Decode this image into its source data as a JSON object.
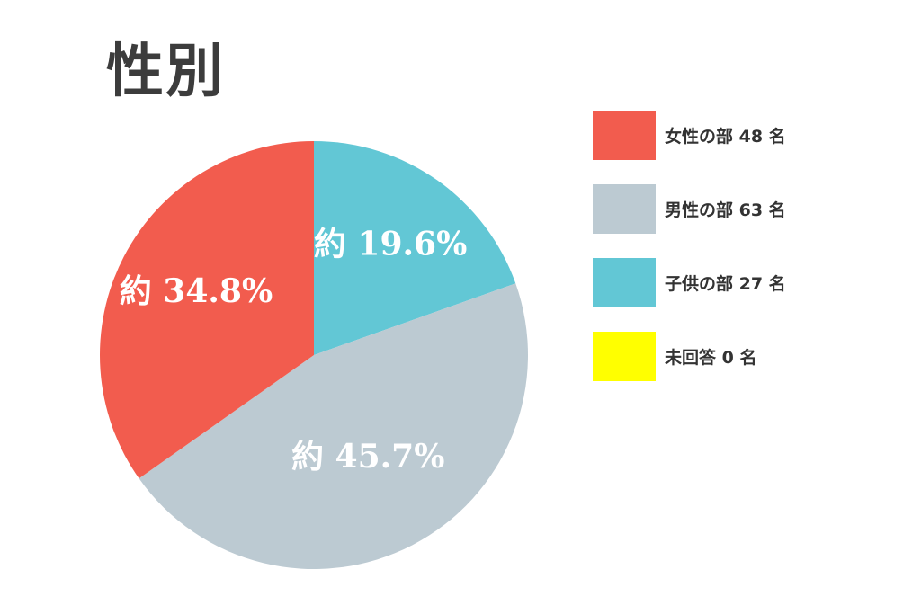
{
  "chart_data": {
    "type": "pie",
    "title": "性別",
    "slices": [
      {
        "label": "子供の部 27 名",
        "value": 27,
        "percent_label": "約 19.6%",
        "color": "#62c7d5"
      },
      {
        "label": "男性の部 63 名",
        "value": 63,
        "percent_label": "約 45.7%",
        "color": "#bccad2"
      },
      {
        "label": "女性の部 48 名",
        "value": 48,
        "percent_label": "約 34.8%",
        "color": "#f25c4e"
      },
      {
        "label": "未回答 0 名",
        "value": 0,
        "percent_label": "",
        "color": "#ffff00"
      }
    ],
    "legend": {
      "position": "right",
      "items": [
        {
          "label": "女性の部 48 名",
          "color": "#f25c4e"
        },
        {
          "label": "男性の部 63 名",
          "color": "#bccad2"
        },
        {
          "label": "子供の部 27 名",
          "color": "#62c7d5"
        },
        {
          "label": "未回答 0 名",
          "color": "#ffff00"
        }
      ]
    }
  }
}
